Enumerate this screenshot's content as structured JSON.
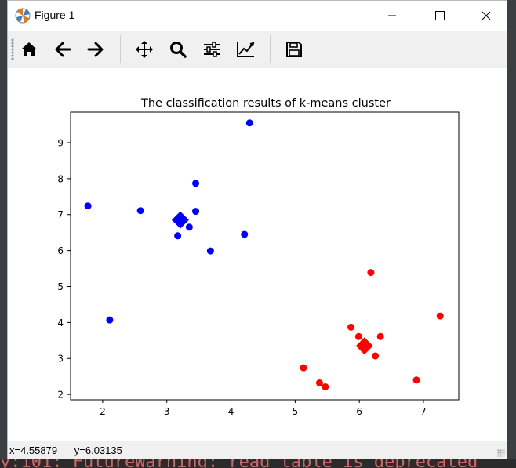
{
  "window": {
    "title": "Figure 1",
    "app_icon": "matplotlib-icon",
    "controls": [
      "minimize-icon",
      "maximize-icon",
      "close-icon"
    ]
  },
  "toolbar": {
    "buttons": [
      {
        "name": "home-button",
        "icon": "home-icon"
      },
      {
        "name": "back-button",
        "icon": "arrow-left-icon"
      },
      {
        "name": "forward-button",
        "icon": "arrow-right-icon"
      },
      {
        "name": "pan-button",
        "icon": "move-icon"
      },
      {
        "name": "zoom-button",
        "icon": "magnifier-icon"
      },
      {
        "name": "configure-subplots-button",
        "icon": "sliders-icon"
      },
      {
        "name": "edit-axis-button",
        "icon": "line-chart-icon"
      },
      {
        "name": "save-button",
        "icon": "floppy-disk-icon"
      }
    ]
  },
  "status": {
    "x_readout": "x=4.55879",
    "y_readout": "y=6.03135"
  },
  "background": {
    "terminal_snippet": "y:101: FutureWarning: read_table is deprecated"
  },
  "chart_data": {
    "type": "scatter",
    "title": "The classification results of k-means cluster",
    "xlabel": "",
    "ylabel": "",
    "xlim": [
      1.5,
      7.55
    ],
    "ylim": [
      1.85,
      9.85
    ],
    "xticks": [
      2,
      3,
      4,
      5,
      6,
      7
    ],
    "yticks": [
      2,
      3,
      4,
      5,
      6,
      7,
      8,
      9
    ],
    "grid": false,
    "colors": {
      "blue": "#0000ff",
      "red": "#ff0000"
    },
    "series": [
      {
        "color": "#0000ff",
        "marker": "circle",
        "points": [
          [
            1.77,
            7.24
          ],
          [
            2.11,
            4.07
          ],
          [
            2.59,
            7.11
          ],
          [
            3.17,
            6.41
          ],
          [
            3.35,
            6.65
          ],
          [
            3.45,
            7.87
          ],
          [
            3.45,
            7.09
          ],
          [
            3.68,
            5.99
          ],
          [
            4.21,
            6.45
          ],
          [
            4.29,
            9.55
          ]
        ]
      },
      {
        "color": "#ff0000",
        "marker": "circle",
        "points": [
          [
            5.13,
            2.74
          ],
          [
            5.38,
            2.32
          ],
          [
            5.47,
            2.21
          ],
          [
            5.87,
            3.87
          ],
          [
            5.99,
            3.61
          ],
          [
            6.18,
            5.39
          ],
          [
            6.25,
            3.07
          ],
          [
            6.33,
            3.61
          ],
          [
            6.89,
            2.4
          ],
          [
            7.26,
            4.18
          ]
        ]
      },
      {
        "color": "#0000ff",
        "marker": "diamond",
        "points": [
          [
            3.21,
            6.85
          ]
        ]
      },
      {
        "color": "#ff0000",
        "marker": "diamond",
        "points": [
          [
            6.08,
            3.35
          ]
        ]
      }
    ]
  }
}
